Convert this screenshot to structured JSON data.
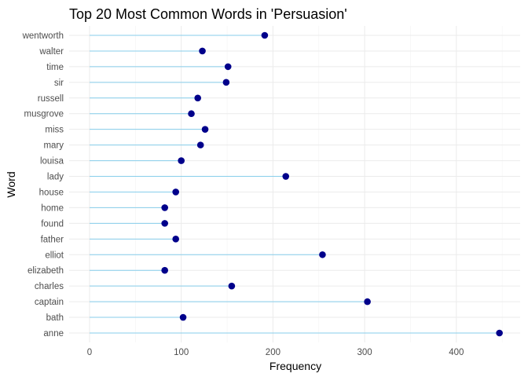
{
  "chart_data": {
    "type": "lollipop",
    "title": "Top 20 Most Common Words in 'Persuasion'",
    "xlabel": "Frequency",
    "ylabel": "Word",
    "xlim": [
      0,
      460
    ],
    "x_ticks": [
      0,
      100,
      200,
      300,
      400
    ],
    "grid": true,
    "legend": "none",
    "colors": {
      "point": "#00008b",
      "segment": "#87ceeb"
    },
    "categories": [
      "anne",
      "bath",
      "captain",
      "charles",
      "elizabeth",
      "elliot",
      "father",
      "found",
      "home",
      "house",
      "lady",
      "louisa",
      "mary",
      "miss",
      "musgrove",
      "russell",
      "sir",
      "time",
      "walter",
      "wentworth"
    ],
    "values": [
      447,
      102,
      303,
      155,
      82,
      254,
      94,
      82,
      82,
      94,
      214,
      100,
      121,
      126,
      111,
      118,
      149,
      151,
      123,
      191
    ]
  }
}
